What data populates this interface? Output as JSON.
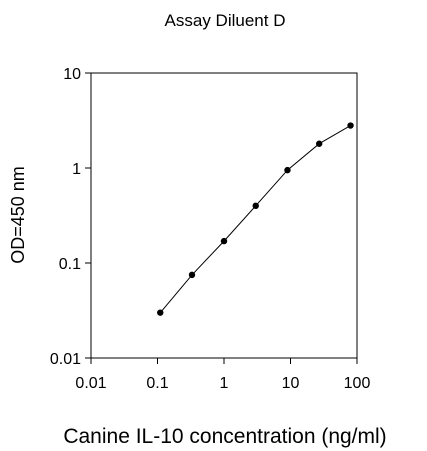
{
  "chart_data": {
    "type": "scatter",
    "title": "Assay Diluent D",
    "xlabel": "Canine IL-10 concentration (ng/ml)",
    "ylabel": "OD=450 nm",
    "x_scale": "log",
    "y_scale": "log",
    "xlim": [
      0.01,
      100
    ],
    "ylim": [
      0.01,
      10
    ],
    "x_ticks": [
      "0.01",
      "0.1",
      "1",
      "10",
      "100"
    ],
    "y_ticks": [
      "0.01",
      "0.1",
      "1",
      "10"
    ],
    "grid": false,
    "series": [
      {
        "x": [
          0.11,
          0.33,
          1,
          3,
          9,
          27,
          80
        ],
        "y": [
          0.03,
          0.075,
          0.17,
          0.4,
          0.95,
          1.8,
          2.8
        ]
      }
    ]
  }
}
